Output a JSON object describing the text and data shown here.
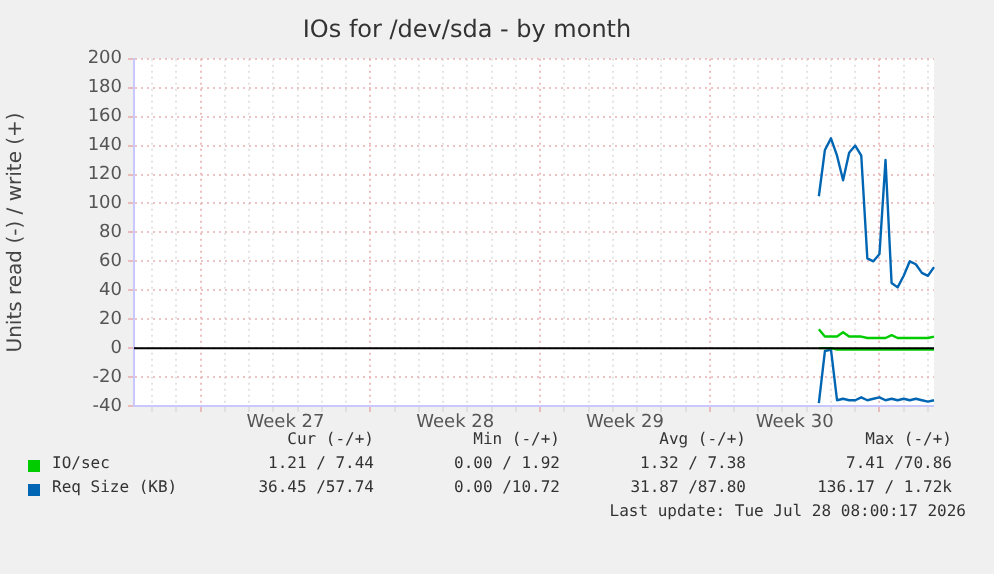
{
  "chart_data": {
    "type": "line",
    "title": "IOs for /dev/sda - by month",
    "ylabel": "Units read (-) / write (+)",
    "categories": [
      null,
      null,
      null,
      null,
      null,
      null,
      null,
      null,
      null,
      null,
      null,
      null,
      null,
      null,
      null,
      null,
      null,
      null,
      null,
      null,
      null,
      null,
      null,
      null,
      null,
      "Week 27",
      null,
      null,
      null,
      null,
      null,
      null,
      null,
      null,
      null,
      null,
      null,
      null,
      null,
      null,
      null,
      null,
      null,
      null,
      null,
      null,
      null,
      null,
      null,
      null,
      null,
      null,
      null,
      "Week 28",
      null,
      null,
      null,
      null,
      null,
      null,
      null,
      null,
      null,
      null,
      null,
      null,
      null,
      null,
      null,
      null,
      null,
      null,
      null,
      null,
      null,
      null,
      null,
      null,
      null,
      null,
      null,
      "Week 29",
      null,
      null,
      null,
      null,
      null,
      null,
      null,
      null,
      null,
      null,
      null,
      null,
      null,
      null,
      null,
      null,
      null,
      null,
      null,
      null,
      null,
      null,
      null,
      null,
      null,
      null,
      null,
      "Week 30",
      null,
      null,
      null,
      null,
      null,
      null,
      null,
      null,
      null,
      null,
      null,
      null,
      null,
      null,
      null,
      null,
      null,
      null,
      null,
      null,
      null,
      null,
      null
    ],
    "ylim": [
      -40,
      200
    ],
    "yticks": [
      -40,
      -20,
      0,
      20,
      40,
      60,
      80,
      100,
      120,
      140,
      160,
      180,
      200
    ],
    "grid": true,
    "legend": "bottom",
    "marker": "none",
    "line_style": "solid",
    "ref_lines": [
      {
        "axis": "y",
        "value": 0,
        "color": "#000000"
      }
    ],
    "series": [
      {
        "color": "#00cc00",
        "values": [
          null,
          null,
          null,
          null,
          null,
          null,
          null,
          null,
          null,
          null,
          null,
          null,
          null,
          null,
          null,
          null,
          null,
          null,
          null,
          null,
          null,
          null,
          null,
          null,
          null,
          null,
          null,
          null,
          null,
          null,
          null,
          null,
          null,
          null,
          null,
          null,
          null,
          null,
          null,
          null,
          null,
          null,
          null,
          null,
          null,
          null,
          null,
          null,
          null,
          null,
          null,
          null,
          null,
          null,
          null,
          null,
          null,
          null,
          null,
          null,
          null,
          null,
          null,
          null,
          null,
          null,
          null,
          null,
          null,
          null,
          null,
          null,
          null,
          null,
          null,
          null,
          null,
          null,
          null,
          null,
          null,
          null,
          null,
          null,
          null,
          null,
          null,
          null,
          null,
          null,
          null,
          null,
          null,
          null,
          null,
          null,
          null,
          null,
          null,
          null,
          null,
          null,
          null,
          null,
          null,
          null,
          null,
          null,
          null,
          null,
          null,
          null,
          null,
          0,
          0,
          0,
          -1,
          -1,
          -1,
          -1,
          -1,
          -1,
          -1,
          -1,
          -1,
          -1,
          -1,
          -1,
          -1,
          -1,
          -1,
          -1,
          -1
        ]
      },
      {
        "color": "#0066b3",
        "values": [
          null,
          null,
          null,
          null,
          null,
          null,
          null,
          null,
          null,
          null,
          null,
          null,
          null,
          null,
          null,
          null,
          null,
          null,
          null,
          null,
          null,
          null,
          null,
          null,
          null,
          null,
          null,
          null,
          null,
          null,
          null,
          null,
          null,
          null,
          null,
          null,
          null,
          null,
          null,
          null,
          null,
          null,
          null,
          null,
          null,
          null,
          null,
          null,
          null,
          null,
          null,
          null,
          null,
          null,
          null,
          null,
          null,
          null,
          null,
          null,
          null,
          null,
          null,
          null,
          null,
          null,
          null,
          null,
          null,
          null,
          null,
          null,
          null,
          null,
          null,
          null,
          null,
          null,
          null,
          null,
          null,
          null,
          null,
          null,
          null,
          null,
          null,
          null,
          null,
          null,
          null,
          null,
          null,
          null,
          null,
          null,
          null,
          null,
          null,
          null,
          null,
          null,
          null,
          null,
          null,
          null,
          null,
          null,
          null,
          null,
          null,
          null,
          null,
          -38,
          -2,
          -1,
          -36,
          -35,
          -36,
          -36,
          -34,
          -36,
          -35,
          -34,
          -36,
          -35,
          -36,
          -35,
          -36,
          -35,
          -36,
          -37,
          -36
        ]
      },
      {
        "name": "IO/sec",
        "color": "#00cc00",
        "values": [
          null,
          null,
          null,
          null,
          null,
          null,
          null,
          null,
          null,
          null,
          null,
          null,
          null,
          null,
          null,
          null,
          null,
          null,
          null,
          null,
          null,
          null,
          null,
          null,
          null,
          null,
          null,
          null,
          null,
          null,
          null,
          null,
          null,
          null,
          null,
          null,
          null,
          null,
          null,
          null,
          null,
          null,
          null,
          null,
          null,
          null,
          null,
          null,
          null,
          null,
          null,
          null,
          null,
          null,
          null,
          null,
          null,
          null,
          null,
          null,
          null,
          null,
          null,
          null,
          null,
          null,
          null,
          null,
          null,
          null,
          null,
          null,
          null,
          null,
          null,
          null,
          null,
          null,
          null,
          null,
          null,
          null,
          null,
          null,
          null,
          null,
          null,
          null,
          null,
          null,
          null,
          null,
          null,
          null,
          null,
          null,
          null,
          null,
          null,
          null,
          null,
          null,
          null,
          null,
          null,
          null,
          null,
          null,
          null,
          null,
          null,
          null,
          null,
          13,
          8,
          8,
          8,
          11,
          8,
          8,
          8,
          7,
          7,
          7,
          7,
          9,
          7,
          7,
          7,
          7,
          7,
          7,
          8
        ]
      },
      {
        "name": "Req Size (KB)",
        "color": "#0066b3",
        "values": [
          null,
          null,
          null,
          null,
          null,
          null,
          null,
          null,
          null,
          null,
          null,
          null,
          null,
          null,
          null,
          null,
          null,
          null,
          null,
          null,
          null,
          null,
          null,
          null,
          null,
          null,
          null,
          null,
          null,
          null,
          null,
          null,
          null,
          null,
          null,
          null,
          null,
          null,
          null,
          null,
          null,
          null,
          null,
          null,
          null,
          null,
          null,
          null,
          null,
          null,
          null,
          null,
          null,
          null,
          null,
          null,
          null,
          null,
          null,
          null,
          null,
          null,
          null,
          null,
          null,
          null,
          null,
          null,
          null,
          null,
          null,
          null,
          null,
          null,
          null,
          null,
          null,
          null,
          null,
          null,
          null,
          null,
          null,
          null,
          null,
          null,
          null,
          null,
          null,
          null,
          null,
          null,
          null,
          null,
          null,
          null,
          null,
          null,
          null,
          null,
          null,
          null,
          null,
          null,
          null,
          null,
          null,
          null,
          null,
          null,
          null,
          null,
          null,
          105,
          137,
          145,
          133,
          116,
          135,
          140,
          133,
          62,
          60,
          65,
          130,
          45,
          42,
          50,
          60,
          58,
          52,
          50,
          56
        ]
      }
    ],
    "annotations": [
      "Cur (-/+)",
      "Min (-/+)",
      "Avg (-/+)",
      "Max (-/+)",
      "1.21 / 7.44",
      "0.00 / 1.92",
      "1.32 / 7.38",
      "7.41 /70.86",
      "36.45 /57.74",
      "0.00 /10.72",
      "31.87 /87.80",
      "136.17 / 1.72k",
      "Last update: Tue Jul 28 08:00:17 2026"
    ]
  }
}
